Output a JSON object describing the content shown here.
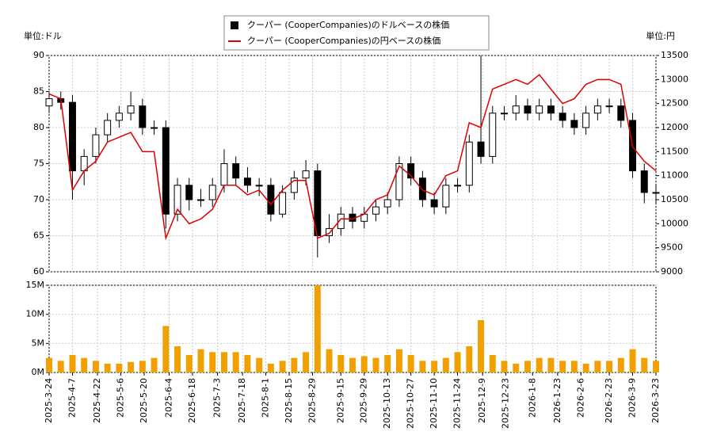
{
  "chart_data": {
    "type": "candlestick",
    "y_unit_label": "単位:ドル",
    "y2_unit_label": "単位:円",
    "x": [
      "2025-03-24",
      "2025-03-31",
      "2025-04-07",
      "2025-04-14",
      "2025-04-21",
      "2025-04-28",
      "2025-05-05",
      "2025-05-12",
      "2025-05-19",
      "2025-05-26",
      "2025-06-02",
      "2025-06-09",
      "2025-06-16",
      "2025-06-23",
      "2025-06-30",
      "2025-07-07",
      "2025-07-14",
      "2025-07-21",
      "2025-07-28",
      "2025-08-04",
      "2025-08-11",
      "2025-08-18",
      "2025-08-25",
      "2025-09-01",
      "2025-09-08",
      "2025-09-15",
      "2025-09-22",
      "2025-09-29",
      "2025-10-06",
      "2025-10-13",
      "2025-10-20",
      "2025-10-27",
      "2025-11-03",
      "2025-11-10",
      "2025-11-17",
      "2025-11-24",
      "2025-12-01",
      "2025-12-08",
      "2025-12-15",
      "2025-12-22",
      "2025-12-29",
      "2026-01-05",
      "2026-01-12",
      "2026-01-19",
      "2026-01-26",
      "2026-02-02",
      "2026-02-09",
      "2026-02-16",
      "2026-02-23",
      "2026-03-02",
      "2026-03-09",
      "2026-03-16",
      "2026-03-23"
    ],
    "xlim": [
      "2025-3-24",
      "2026-3-23"
    ],
    "xticks": [
      "2025-3-24",
      "2025-4-7",
      "2025-4-22",
      "2025-5-6",
      "2025-5-20",
      "2025-6-4",
      "2025-6-18",
      "2025-7-3",
      "2025-7-18",
      "2025-8-1",
      "2025-8-15",
      "2025-8-29",
      "2025-9-15",
      "2025-9-29",
      "2025-10-13",
      "2025-10-27",
      "2025-11-10",
      "2025-11-24",
      "2025-12-9",
      "2025-12-23",
      "2026-1-8",
      "2026-1-23",
      "2026-2-6",
      "2026-2-23",
      "2026-3-9",
      "2026-3-23"
    ],
    "ylim": [
      60,
      90
    ],
    "yticks": [
      60,
      65,
      70,
      75,
      80,
      85,
      90
    ],
    "y2lim": [
      9000,
      13500
    ],
    "y2ticks": [
      9000,
      9500,
      10000,
      10500,
      11000,
      11500,
      12000,
      12500,
      13000,
      13500
    ],
    "grid": true,
    "series": [
      {
        "name": "クーパー (CooperCompanies)のドルベースの株価",
        "color": "#000000",
        "open": [
          83,
          84,
          83.5,
          74,
          76,
          79,
          81,
          82,
          83,
          80,
          80,
          68,
          72,
          70,
          70,
          72,
          75,
          73,
          72,
          72,
          68,
          71,
          73,
          74,
          65,
          66,
          68,
          67,
          68,
          69,
          70,
          75,
          73,
          70,
          69,
          72,
          72,
          78,
          76,
          82,
          82,
          83,
          82,
          83,
          82,
          81,
          80,
          82,
          83,
          83,
          81,
          74,
          71
        ],
        "high": [
          85,
          85,
          84.5,
          77,
          80,
          82,
          83,
          85,
          84,
          81,
          81,
          73,
          73,
          71.5,
          73,
          77,
          76,
          74.5,
          73,
          73,
          72,
          74,
          75.5,
          75,
          68,
          69,
          69,
          69,
          70,
          71,
          76,
          76,
          74,
          71,
          73,
          73,
          79,
          90,
          83,
          83,
          84.5,
          84,
          84,
          84,
          83,
          82,
          83,
          84,
          84,
          84,
          82,
          75,
          72
        ],
        "low": [
          82,
          82.5,
          70,
          72,
          75,
          78,
          80,
          81,
          79,
          79,
          66,
          67,
          68.5,
          69,
          69,
          71,
          72,
          71,
          70.5,
          67,
          67.5,
          70,
          72,
          62,
          64,
          65,
          66,
          66,
          67,
          68,
          69,
          72,
          69,
          68,
          68,
          71,
          71,
          75,
          75,
          81,
          81,
          81,
          81,
          81,
          80,
          79,
          79,
          81,
          82,
          80,
          73,
          69.5,
          69.5
        ],
        "close": [
          84,
          83.5,
          74,
          76,
          79,
          81,
          82,
          83,
          80,
          80,
          68,
          72,
          70,
          70,
          72,
          75,
          73,
          72,
          72,
          68,
          71,
          73,
          74,
          65,
          66,
          68,
          67,
          68,
          69,
          70,
          75,
          73,
          70,
          69,
          72,
          72,
          78,
          76,
          82,
          82,
          83,
          82,
          83,
          82,
          81,
          80,
          82,
          83,
          83,
          81,
          74,
          71,
          71
        ]
      },
      {
        "name": "クーパー (CooperCompanies)の円ベースの株価",
        "color": "#dd0000",
        "axis": "y2",
        "values": [
          12700,
          12600,
          10700,
          11100,
          11300,
          11700,
          11800,
          11900,
          11500,
          11500,
          9700,
          10300,
          10000,
          10100,
          10300,
          10800,
          10800,
          10600,
          10700,
          10400,
          10700,
          10900,
          10900,
          9700,
          9800,
          10100,
          10100,
          10200,
          10500,
          10600,
          11200,
          11000,
          10700,
          10600,
          11000,
          11100,
          12100,
          12000,
          12800,
          12900,
          13000,
          12900,
          13100,
          12800,
          12500,
          12600,
          12900,
          13000,
          13000,
          12900,
          11600,
          11300,
          11100
        ]
      }
    ],
    "volume": {
      "color": "#f0a000",
      "ylim": [
        0,
        15000000
      ],
      "yticks": [
        {
          "value": 0,
          "label": "0M"
        },
        {
          "value": 5000000,
          "label": "5M"
        },
        {
          "value": 10000000,
          "label": "10M"
        },
        {
          "value": 15000000,
          "label": "15M"
        }
      ],
      "values": [
        2500000,
        2000000,
        3000000,
        2500000,
        2000000,
        1500000,
        1500000,
        1800000,
        2000000,
        2500000,
        8000000,
        4500000,
        3000000,
        4000000,
        3500000,
        3500000,
        3500000,
        3000000,
        2500000,
        1500000,
        2000000,
        2500000,
        3500000,
        15000000,
        4000000,
        3000000,
        2500000,
        2800000,
        2500000,
        3000000,
        4000000,
        3000000,
        2000000,
        2000000,
        2500000,
        3500000,
        4500000,
        9000000,
        3000000,
        2000000,
        1500000,
        2000000,
        2500000,
        2500000,
        2000000,
        2000000,
        1500000,
        2000000,
        2000000,
        2500000,
        4000000,
        2500000,
        2000000
      ]
    }
  }
}
